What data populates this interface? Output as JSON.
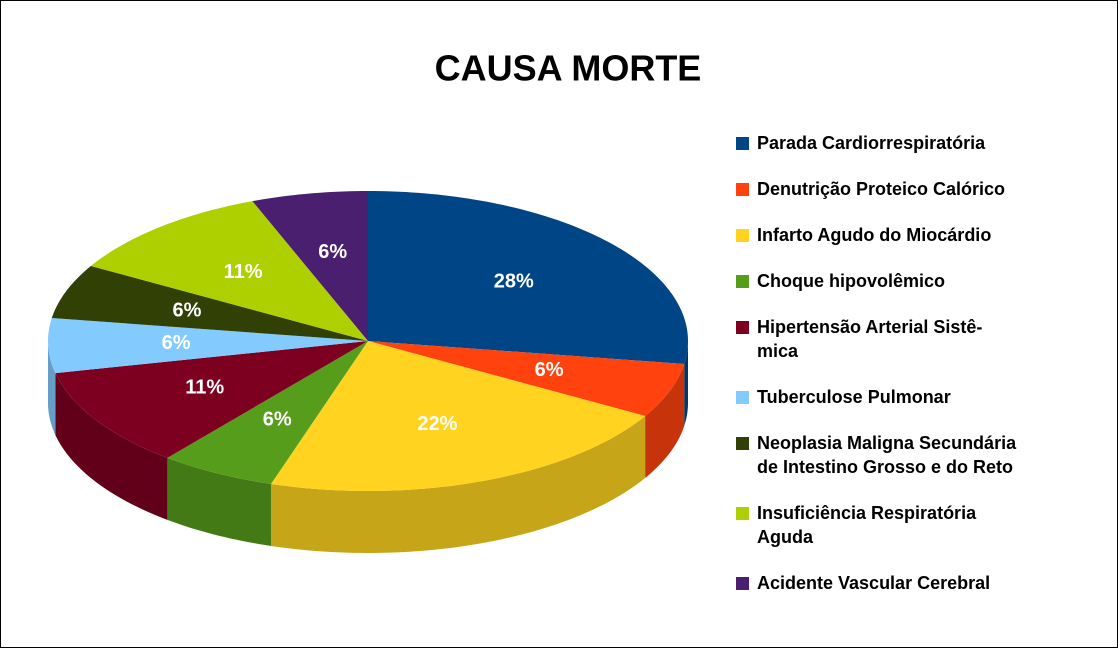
{
  "chart_data": {
    "type": "pie",
    "title": "CAUSA MORTE",
    "categories": [
      "Parada Cardiorrespiratória",
      "Denutrição Proteico Calórico",
      "Infarto Agudo do Miocárdio",
      "Choque hipovolêmico",
      "Hipertensão Arterial Sistê-\nmica",
      "Tuberculose Pulmonar",
      "Neoplasia Maligna Secundária\nde Intestino Grosso e do Reto",
      "Insuficiência Respiratória\nAguda",
      "Acidente Vascular Cerebral"
    ],
    "values": [
      28,
      6,
      22,
      6,
      11,
      6,
      6,
      11,
      6
    ],
    "value_labels": [
      "28%",
      "6%",
      "22%",
      "6%",
      "11%",
      "6%",
      "6%",
      "11%",
      "6%"
    ],
    "colors": [
      "#004586",
      "#ff420e",
      "#ffd320",
      "#579d1c",
      "#7e0021",
      "#83caff",
      "#314004",
      "#aecf00",
      "#4b1f6f"
    ]
  }
}
